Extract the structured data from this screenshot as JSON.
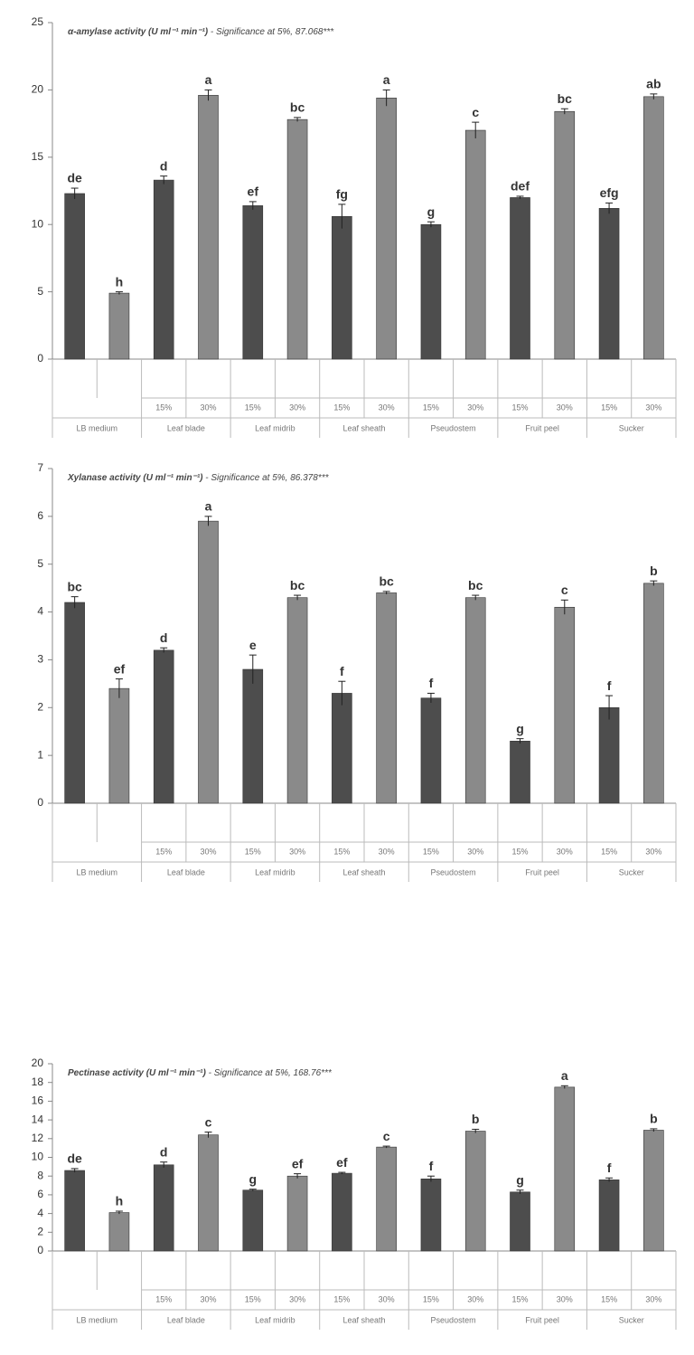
{
  "chart_data": [
    {
      "type": "bar",
      "title": "α-amylase activity (U ml⁻¹ min⁻¹)",
      "subtitle": " - Significance at 5%, 87.068***",
      "categories": [
        null,
        null,
        "15%",
        "30%",
        "15%",
        "30%",
        "15%",
        "30%",
        "15%",
        "30%",
        "15%",
        "30%",
        "15%",
        "30%"
      ],
      "groups": [
        "LB medium",
        "Leaf blade",
        "Leaf midrib",
        "Leaf sheath",
        "Pseudostem",
        "Fruit peel",
        "Sucker"
      ],
      "values": [
        12.3,
        4.9,
        13.3,
        19.6,
        11.4,
        17.8,
        10.6,
        19.4,
        10.0,
        17.0,
        12.0,
        18.4,
        11.2,
        19.5
      ],
      "errors": [
        0.4,
        0.1,
        0.3,
        0.4,
        0.3,
        0.15,
        0.9,
        0.6,
        0.2,
        0.6,
        0.1,
        0.2,
        0.4,
        0.2
      ],
      "annotations": [
        "de",
        "h",
        "d",
        "a",
        "ef",
        "bc",
        "fg",
        "a",
        "g",
        "c",
        "def",
        "bc",
        "efg",
        "ab"
      ],
      "colors": [
        "#4d4d4d",
        "#8a8a8a"
      ],
      "ylim": [
        0,
        25
      ],
      "yticks": [
        0,
        5,
        10,
        15,
        20,
        25
      ]
    },
    {
      "type": "bar",
      "title": "Xylanase activity (U ml⁻¹ min⁻¹)",
      "subtitle": " - Significance at 5%, 86.378***",
      "categories": [
        null,
        null,
        "15%",
        "30%",
        "15%",
        "30%",
        "15%",
        "30%",
        "15%",
        "30%",
        "15%",
        "30%",
        "15%",
        "30%"
      ],
      "groups": [
        "LB medium",
        "Leaf blade",
        "Leaf midrib",
        "Leaf sheath",
        "Pseudostem",
        "Fruit peel",
        "Sucker"
      ],
      "values": [
        4.2,
        2.4,
        3.2,
        5.9,
        2.8,
        4.3,
        2.3,
        4.4,
        2.2,
        4.3,
        1.3,
        4.1,
        2.0,
        4.6
      ],
      "errors": [
        0.12,
        0.2,
        0.05,
        0.1,
        0.3,
        0.05,
        0.25,
        0.03,
        0.1,
        0.05,
        0.05,
        0.15,
        0.25,
        0.05
      ],
      "annotations": [
        "bc",
        "ef",
        "d",
        "a",
        "e",
        "bc",
        "f",
        "bc",
        "f",
        "bc",
        "g",
        "c",
        "f",
        "b"
      ],
      "colors": [
        "#4d4d4d",
        "#8a8a8a"
      ],
      "ylim": [
        0,
        7
      ],
      "yticks": [
        0,
        1,
        2,
        3,
        4,
        5,
        6,
        7
      ]
    },
    {
      "type": "bar",
      "title": "Pectinase activity (U ml⁻¹ min⁻¹)",
      "subtitle": " - Significance at 5%, 168.76***",
      "categories": [
        null,
        null,
        "15%",
        "30%",
        "15%",
        "30%",
        "15%",
        "30%",
        "15%",
        "30%",
        "15%",
        "30%",
        "15%",
        "30%"
      ],
      "groups": [
        "LB medium",
        "Leaf blade",
        "Leaf midrib",
        "Leaf sheath",
        "Pseudostem",
        "Fruit peel",
        "Sucker"
      ],
      "values": [
        8.6,
        4.1,
        9.2,
        12.4,
        6.5,
        8.0,
        8.3,
        11.1,
        7.7,
        12.8,
        6.3,
        17.5,
        7.6,
        12.9
      ],
      "errors": [
        0.2,
        0.15,
        0.3,
        0.3,
        0.1,
        0.25,
        0.1,
        0.1,
        0.3,
        0.2,
        0.2,
        0.15,
        0.2,
        0.15
      ],
      "annotations": [
        "de",
        "h",
        "d",
        "c",
        "g",
        "ef",
        "ef",
        "c",
        "f",
        "b",
        "g",
        "a",
        "f",
        "b"
      ],
      "colors": [
        "#4d4d4d",
        "#8a8a8a"
      ],
      "ylim": [
        0,
        20
      ],
      "yticks": [
        0,
        2,
        4,
        6,
        8,
        10,
        12,
        14,
        16,
        18,
        20
      ]
    }
  ]
}
